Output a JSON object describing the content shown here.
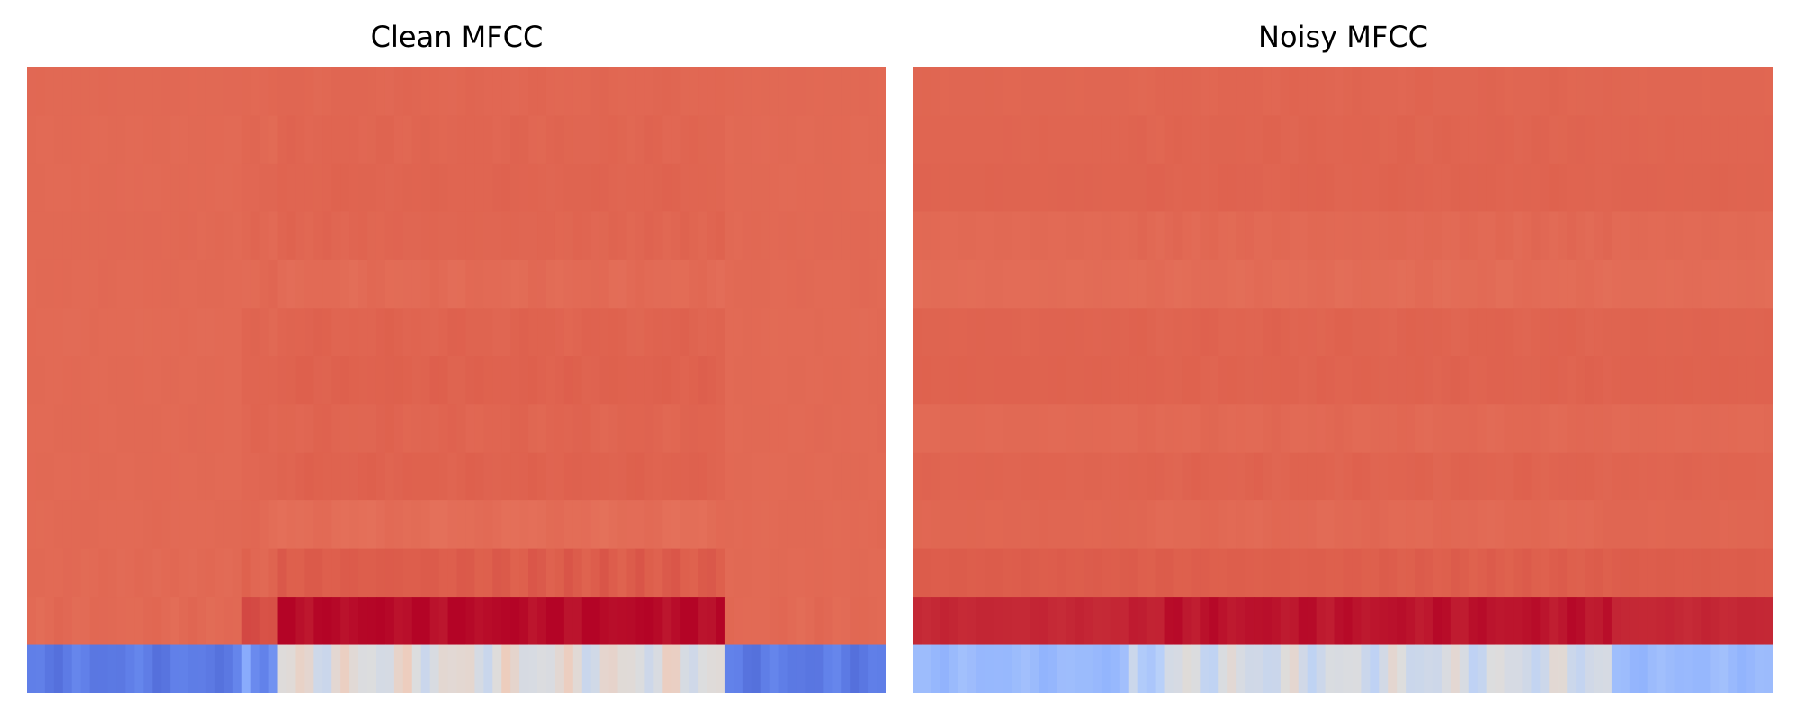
{
  "chart_data": [
    {
      "type": "heatmap",
      "title": "Clean MFCC",
      "colormap": "coolwarm",
      "vmin": -600,
      "vmax": 130,
      "n_rows": 13,
      "n_frames": 96,
      "grid": false,
      "axes_visible": false,
      "features": {
        "default": [
          25,
          24,
          24,
          25,
          24,
          23,
          24,
          24,
          24,
          24,
          24,
          24,
          -520
        ],
        "active": {
          "start": 28,
          "end": 77,
          "values": [
            28,
            30,
            32,
            30,
            22,
            33,
            36,
            31,
            35,
            18,
            42,
            125,
            -230
          ]
        },
        "transition": {
          "start": 24,
          "end": 27,
          "values": [
            27,
            26,
            27,
            27,
            24,
            29,
            30,
            28,
            27,
            24,
            30,
            60,
            -470
          ]
        },
        "row_pattern": [
          {
            "period": 7,
            "phase": 1,
            "amp": 3
          },
          {
            "period": 5,
            "phase": 2,
            "amp": 4
          },
          {
            "period": 9,
            "phase": 3,
            "amp": 3
          },
          {
            "period": 4,
            "phase": 0,
            "amp": 4
          },
          {
            "period": 6,
            "phase": 5,
            "amp": 5
          },
          {
            "period": 8,
            "phase": 2,
            "amp": 5
          },
          {
            "period": 5,
            "phase": 1,
            "amp": 4
          },
          {
            "period": 7,
            "phase": 4,
            "amp": 5
          },
          {
            "period": 6,
            "phase": 0,
            "amp": 4
          },
          {
            "period": 9,
            "phase": 6,
            "amp": 6
          },
          {
            "period": 4,
            "phase": 1,
            "amp": 8
          },
          {
            "period": 5,
            "phase": 3,
            "amp": 15
          },
          {
            "period": 6,
            "phase": 2,
            "amp": 60
          }
        ]
      }
    },
    {
      "type": "heatmap",
      "title": "Noisy MFCC",
      "colormap": "coolwarm",
      "vmin": -600,
      "vmax": 130,
      "n_rows": 13,
      "n_frames": 96,
      "grid": false,
      "axes_visible": false,
      "features": {
        "default": [
          29,
          31,
          33,
          24,
          20,
          33,
          35,
          24,
          32,
          29,
          42,
          95,
          -390
        ],
        "active": {
          "start": 28,
          "end": 77,
          "values": [
            30,
            32,
            33,
            25,
            20,
            33,
            34,
            25,
            33,
            25,
            40,
            115,
            -260
          ]
        },
        "transition": {
          "start": 24,
          "end": 27,
          "values": [
            29,
            31,
            33,
            25,
            20,
            33,
            34,
            24,
            32,
            27,
            41,
            105,
            -320
          ]
        },
        "row_pattern": [
          {
            "period": 7,
            "phase": 1,
            "amp": 3
          },
          {
            "period": 5,
            "phase": 2,
            "amp": 3
          },
          {
            "period": 9,
            "phase": 3,
            "amp": 3
          },
          {
            "period": 4,
            "phase": 0,
            "amp": 4
          },
          {
            "period": 6,
            "phase": 5,
            "amp": 4
          },
          {
            "period": 8,
            "phase": 2,
            "amp": 4
          },
          {
            "period": 5,
            "phase": 1,
            "amp": 3
          },
          {
            "period": 7,
            "phase": 4,
            "amp": 4
          },
          {
            "period": 6,
            "phase": 0,
            "amp": 4
          },
          {
            "period": 9,
            "phase": 6,
            "amp": 4
          },
          {
            "period": 4,
            "phase": 1,
            "amp": 4
          },
          {
            "period": 5,
            "phase": 3,
            "amp": 12
          },
          {
            "period": 6,
            "phase": 2,
            "amp": 55
          }
        ]
      }
    }
  ]
}
